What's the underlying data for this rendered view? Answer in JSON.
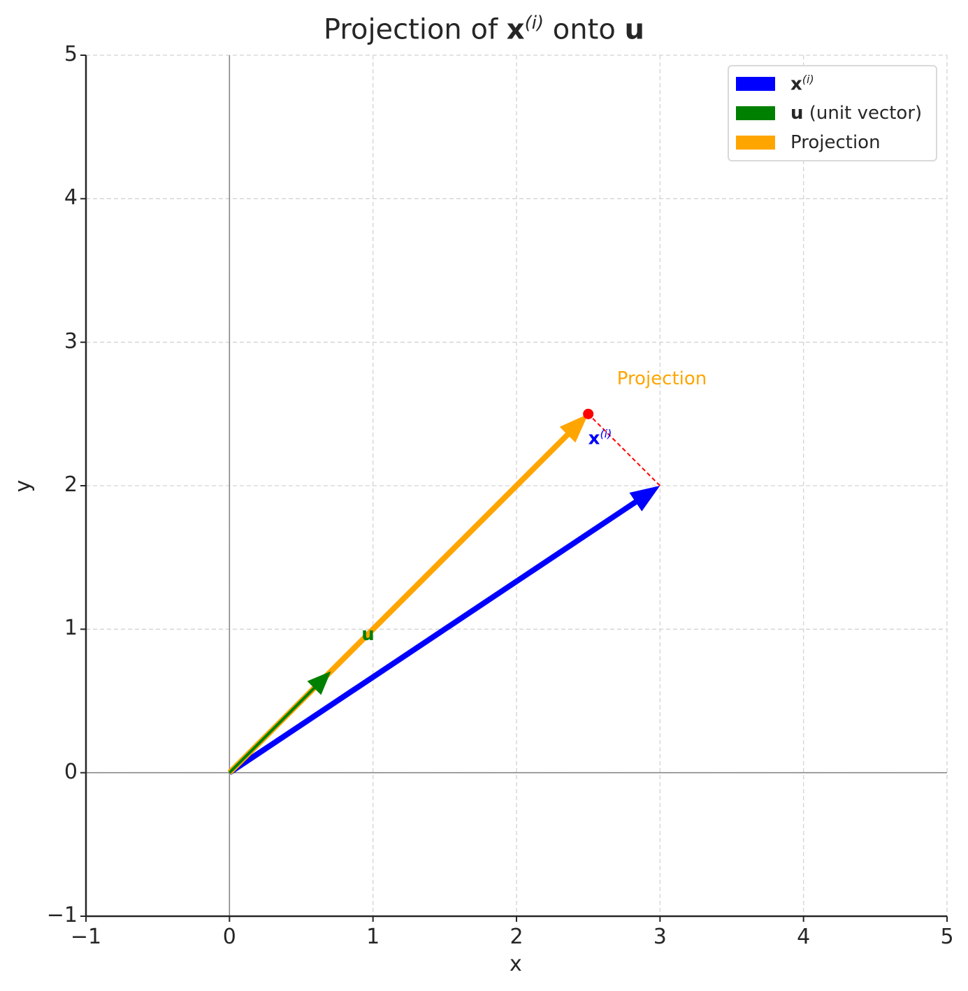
{
  "chart_data": {
    "type": "vector",
    "title": "Projection of x(i) onto u",
    "title_parts": {
      "prefix": "Projection of ",
      "vec": "x",
      "sup": "(i)",
      "mid": " onto ",
      "target": "u"
    },
    "xlabel": "x",
    "ylabel": "y",
    "xlim": [
      -1,
      5
    ],
    "ylim": [
      -1,
      5
    ],
    "xticks": [
      "−1",
      "0",
      "1",
      "2",
      "3",
      "4",
      "5"
    ],
    "yticks": [
      "−1",
      "0",
      "1",
      "2",
      "3",
      "4",
      "5"
    ],
    "xtick_values": [
      -1,
      0,
      1,
      2,
      3,
      4,
      5
    ],
    "ytick_values": [
      -1,
      0,
      1,
      2,
      3,
      4,
      5
    ],
    "grid": true,
    "legend_position": "top-right",
    "vectors": [
      {
        "name": "x(i)",
        "legend_bold": "x",
        "legend_sup": "(i)",
        "legend_rest": "",
        "from": [
          0,
          0
        ],
        "to": [
          3,
          2
        ],
        "color": "#0000ff"
      },
      {
        "name": "u (unit vector)",
        "legend_bold": "u",
        "legend_sup": "",
        "legend_rest": " (unit vector)",
        "from": [
          0,
          0
        ],
        "to": [
          0.707,
          0.707
        ],
        "color": "#008000"
      },
      {
        "name": "Projection",
        "legend_bold": "",
        "legend_sup": "",
        "legend_rest": "Projection",
        "from": [
          0,
          0
        ],
        "to": [
          2.5,
          2.5
        ],
        "color": "#ffa500"
      }
    ],
    "projection_point": [
      2.5,
      2.5
    ],
    "projection_point_color": "#ff0000",
    "perpendicular": {
      "from": [
        3,
        2
      ],
      "to": [
        2.5,
        2.5
      ],
      "color": "#ff0000"
    },
    "annotations": [
      {
        "id": "u-label",
        "bold": "u",
        "sup": "",
        "at": [
          0.92,
          0.93
        ],
        "color": "#008000"
      },
      {
        "id": "x-label",
        "bold": "x",
        "sup": "(i)",
        "at": [
          2.5,
          2.3
        ],
        "color": "#0000ff"
      },
      {
        "id": "projection-label",
        "bold": "",
        "sup": "",
        "text": "Projection",
        "at": [
          2.7,
          2.75
        ],
        "color": "#ffa500"
      }
    ]
  }
}
